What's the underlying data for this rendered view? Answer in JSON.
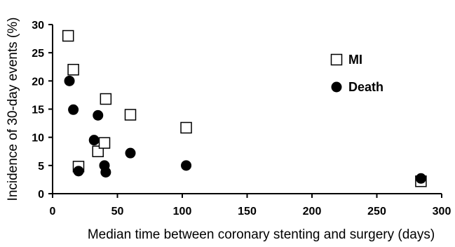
{
  "chart_data": {
    "type": "scatter",
    "xlabel": "Median time between coronary stenting and surgery (days)",
    "ylabel": "Incidence of 30-day events (%)",
    "xlim": [
      0,
      300
    ],
    "ylim": [
      0,
      30
    ],
    "xticks": [
      0,
      50,
      100,
      150,
      200,
      250,
      300
    ],
    "yticks": [
      0,
      5,
      10,
      15,
      20,
      25,
      30
    ],
    "grid": false,
    "legend_position": "top-right",
    "series": [
      {
        "name": "MI",
        "marker": "open-square",
        "color": "#000000",
        "points": [
          {
            "x": 12,
            "y": 28
          },
          {
            "x": 16,
            "y": 22
          },
          {
            "x": 20,
            "y": 4.8
          },
          {
            "x": 35,
            "y": 7.5
          },
          {
            "x": 40,
            "y": 9
          },
          {
            "x": 41,
            "y": 16.8
          },
          {
            "x": 60,
            "y": 14
          },
          {
            "x": 103,
            "y": 11.7
          },
          {
            "x": 284,
            "y": 2.2
          }
        ]
      },
      {
        "name": "Death",
        "marker": "filled-circle",
        "color": "#000000",
        "points": [
          {
            "x": 13,
            "y": 20
          },
          {
            "x": 16,
            "y": 14.9
          },
          {
            "x": 20,
            "y": 4
          },
          {
            "x": 32,
            "y": 9.5
          },
          {
            "x": 35,
            "y": 13.9
          },
          {
            "x": 40,
            "y": 5
          },
          {
            "x": 41,
            "y": 3.8
          },
          {
            "x": 60,
            "y": 7.2
          },
          {
            "x": 103,
            "y": 5
          },
          {
            "x": 284,
            "y": 2.7
          }
        ]
      }
    ]
  }
}
